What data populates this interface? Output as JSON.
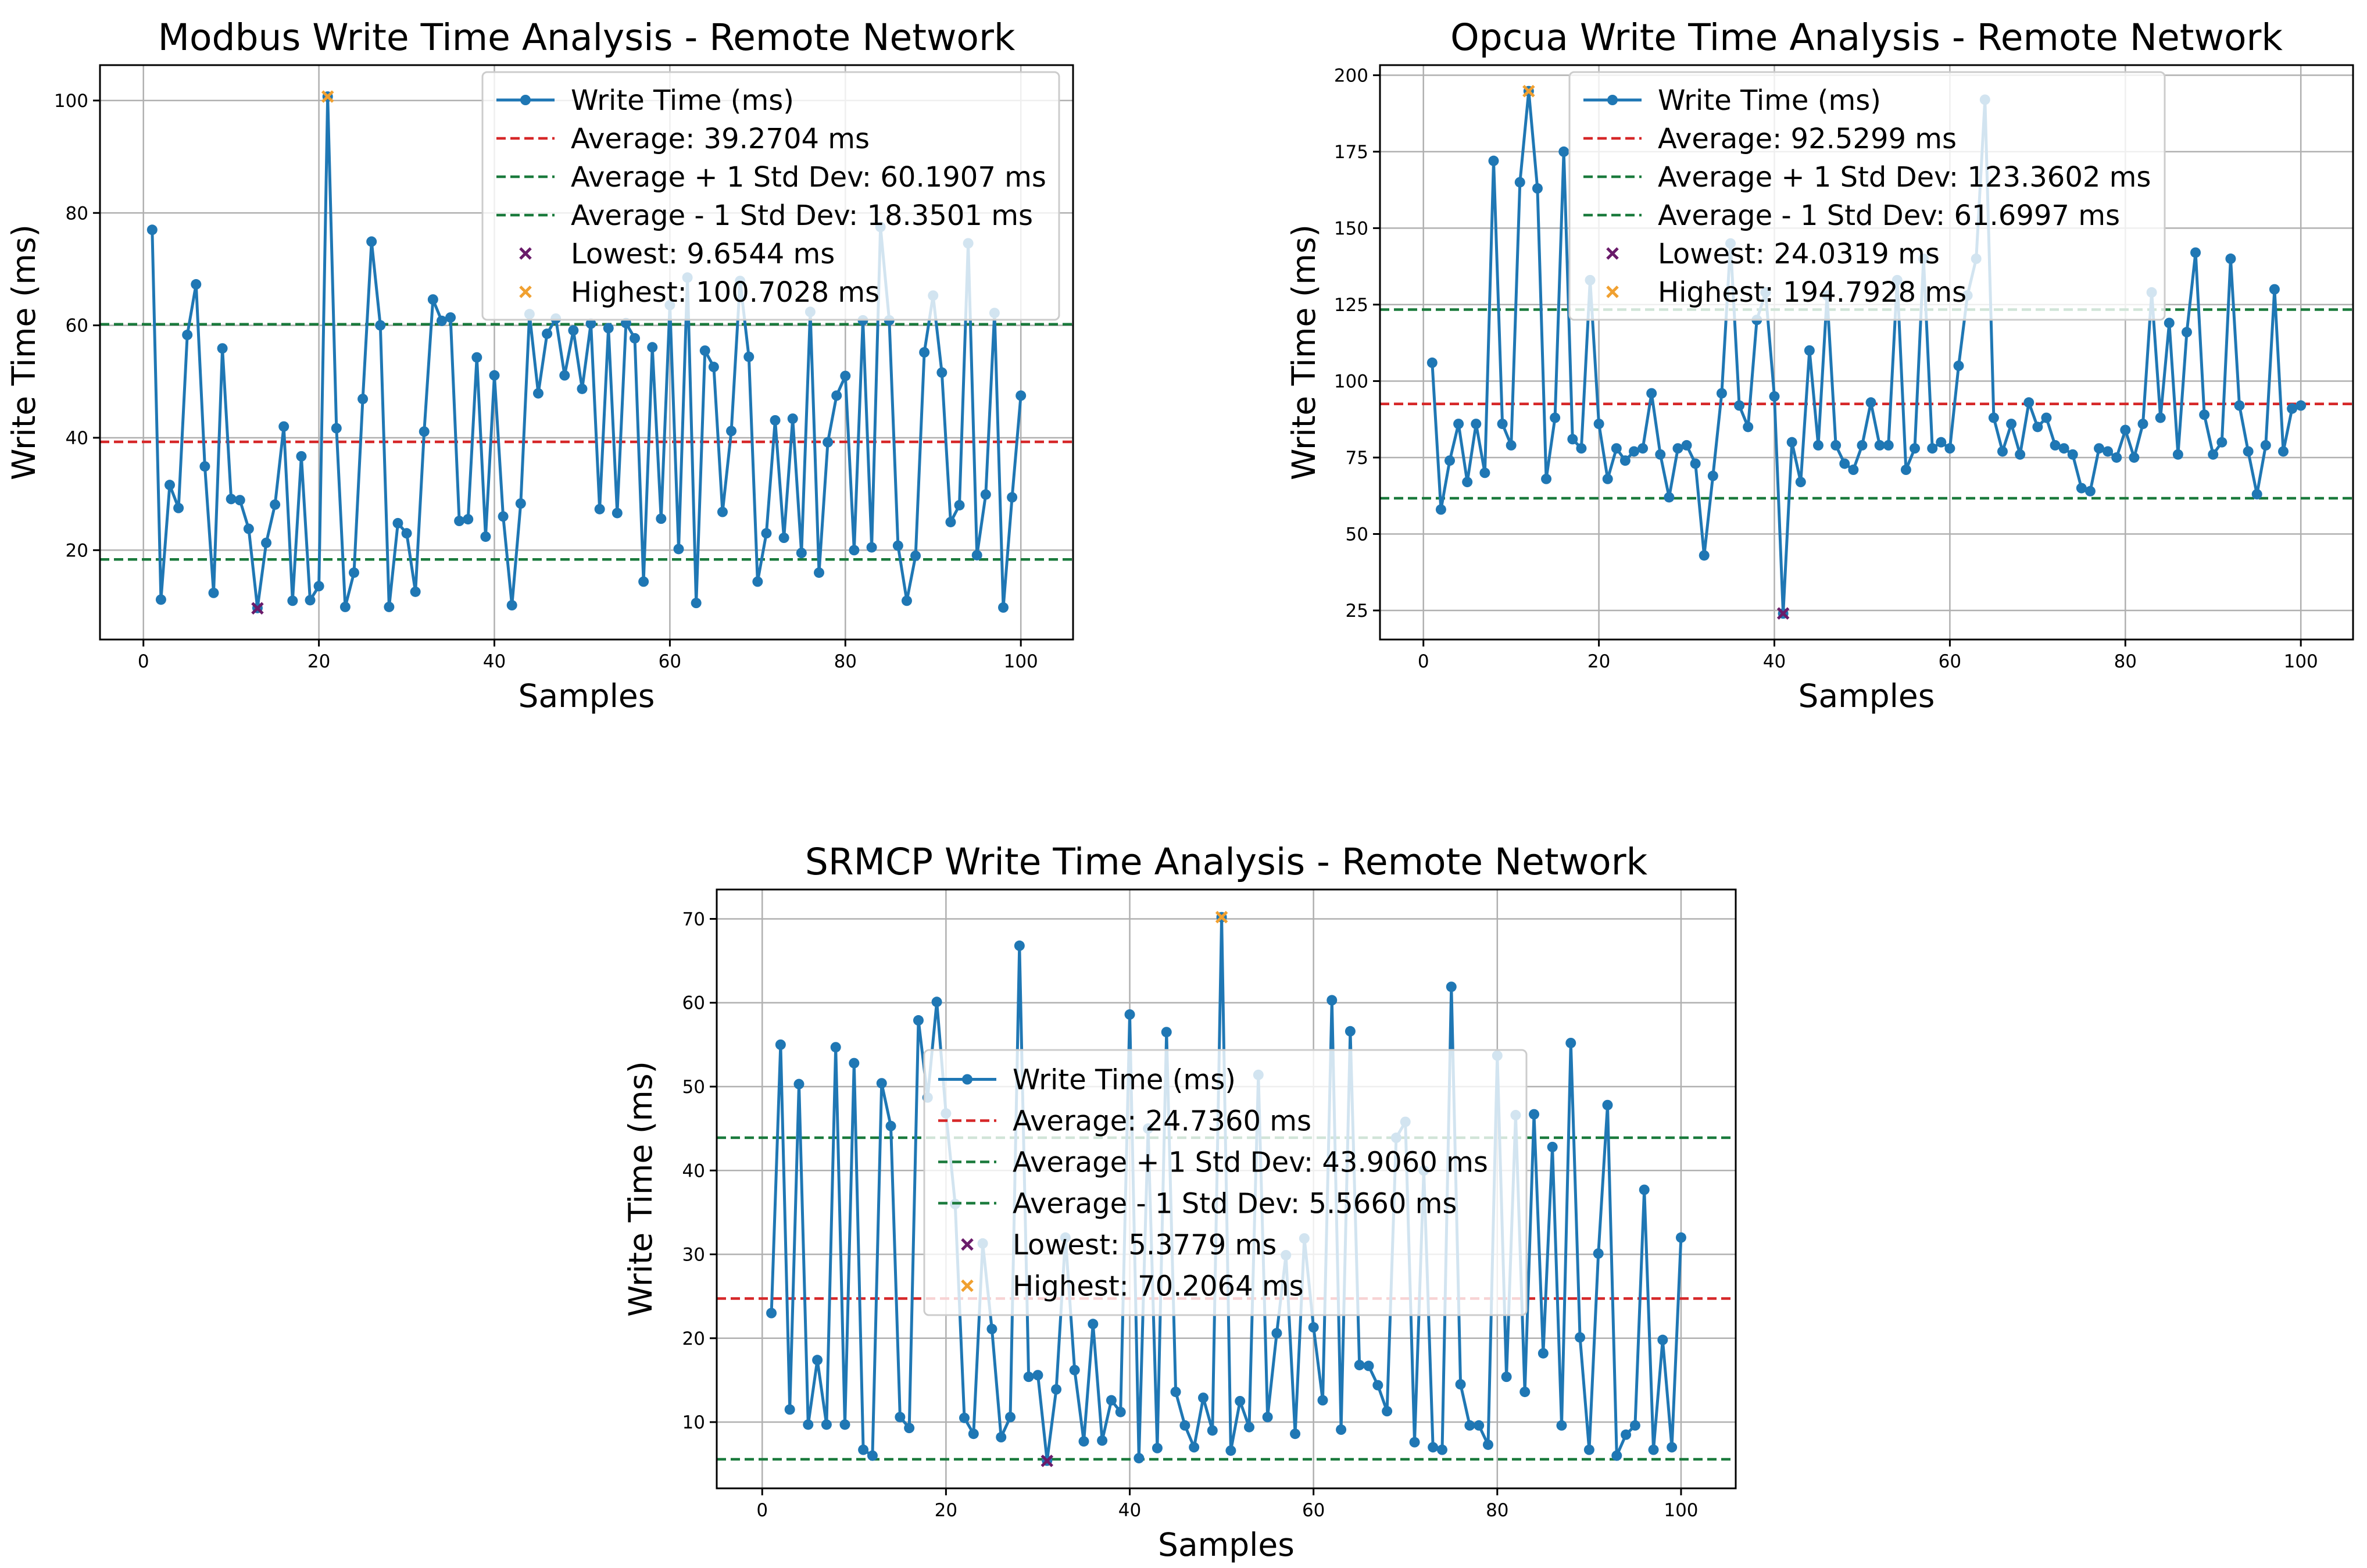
{
  "chart_data": [
    {
      "type": "line",
      "title": "Modbus Write Time Analysis - Remote Network",
      "xlabel": "Samples",
      "ylabel": "Write Time (ms)",
      "xlim": [
        -4.95,
        105.95
      ],
      "ylim": [
        4.1,
        106.3
      ],
      "xticks": [
        0,
        20,
        40,
        60,
        80,
        100
      ],
      "yticks": [
        20,
        40,
        60,
        80,
        100
      ],
      "grid": true,
      "legend_position": "upper-right",
      "series": [
        {
          "name": "Write Time (ms)",
          "color": "#1f77b4",
          "x": [
            1,
            2,
            3,
            4,
            5,
            6,
            7,
            8,
            9,
            10,
            11,
            12,
            13,
            14,
            15,
            16,
            17,
            18,
            19,
            20,
            21,
            22,
            23,
            24,
            25,
            26,
            27,
            28,
            29,
            30,
            31,
            32,
            33,
            34,
            35,
            36,
            37,
            38,
            39,
            40,
            41,
            42,
            43,
            44,
            45,
            46,
            47,
            48,
            49,
            50,
            51,
            52,
            53,
            54,
            55,
            56,
            57,
            58,
            59,
            60,
            61,
            62,
            63,
            64,
            65,
            66,
            67,
            68,
            69,
            70,
            71,
            72,
            73,
            74,
            75,
            76,
            77,
            78,
            79,
            80,
            81,
            82,
            83,
            84,
            85,
            86,
            87,
            88,
            89,
            90,
            91,
            92,
            93,
            94,
            95,
            96,
            97,
            98,
            99,
            100
          ],
          "values": [
            77.0,
            11.2,
            31.6,
            27.5,
            58.3,
            67.3,
            34.9,
            12.4,
            55.9,
            29.1,
            28.9,
            23.8,
            9.7,
            21.3,
            28.1,
            42.0,
            11.0,
            36.7,
            11.1,
            13.6,
            100.7,
            41.7,
            9.9,
            16.0,
            46.9,
            74.9,
            60.0,
            9.9,
            24.8,
            23.0,
            12.6,
            41.1,
            64.6,
            60.8,
            61.4,
            25.2,
            25.5,
            54.3,
            22.4,
            51.1,
            26.0,
            10.2,
            28.3,
            62.0,
            47.9,
            58.5,
            61.2,
            51.1,
            59.1,
            48.7,
            60.3,
            27.3,
            59.5,
            26.6,
            60.4,
            57.7,
            14.4,
            56.1,
            25.6,
            63.6,
            20.2,
            68.5,
            10.6,
            55.5,
            52.6,
            26.8,
            41.2,
            67.9,
            54.4,
            14.4,
            23.0,
            43.1,
            22.2,
            43.4,
            19.5,
            62.4,
            16.0,
            39.2,
            47.5,
            51.0,
            20.0,
            60.9,
            20.5,
            77.5,
            60.9,
            20.8,
            11.0,
            19.0,
            55.2,
            65.3,
            51.6,
            25.0,
            28.0,
            74.6,
            19.1,
            29.9,
            62.2,
            9.8,
            29.4,
            47.5
          ]
        }
      ],
      "reference_lines": [
        {
          "label": "Average: 39.2704 ms",
          "value": 39.2704,
          "color": "#d62728"
        },
        {
          "label": "Average + 1 Std Dev: 60.1907 ms",
          "value": 60.1907,
          "color": "#1a7a3c"
        },
        {
          "label": "Average - 1 Std Dev: 18.3501 ms",
          "value": 18.3501,
          "color": "#1a7a3c"
        }
      ],
      "markers": [
        {
          "label": "Lowest: 9.6544 ms",
          "x": 13,
          "value": 9.6544,
          "color": "#6a1b6a"
        },
        {
          "label": "Highest: 100.7028 ms",
          "x": 21,
          "value": 100.7028,
          "color": "#f0a030"
        }
      ]
    },
    {
      "type": "line",
      "title": "Opcua Write Time Analysis - Remote Network",
      "xlabel": "Samples",
      "ylabel": "Write Time (ms)",
      "xlim": [
        -4.95,
        105.95
      ],
      "ylim": [
        15.5,
        203.3
      ],
      "xticks": [
        0,
        20,
        40,
        60,
        80,
        100
      ],
      "yticks": [
        25,
        50,
        75,
        100,
        125,
        150,
        175,
        200
      ],
      "grid": true,
      "legend_position": "upper-right",
      "series": [
        {
          "name": "Write Time (ms)",
          "color": "#1f77b4",
          "x": [
            1,
            2,
            3,
            4,
            5,
            6,
            7,
            8,
            9,
            10,
            11,
            12,
            13,
            14,
            15,
            16,
            17,
            18,
            19,
            20,
            21,
            22,
            23,
            24,
            25,
            26,
            27,
            28,
            29,
            30,
            31,
            32,
            33,
            34,
            35,
            36,
            37,
            38,
            39,
            40,
            41,
            42,
            43,
            44,
            45,
            46,
            47,
            48,
            49,
            50,
            51,
            52,
            53,
            54,
            55,
            56,
            57,
            58,
            59,
            60,
            61,
            62,
            63,
            64,
            65,
            66,
            67,
            68,
            69,
            70,
            71,
            72,
            73,
            74,
            75,
            76,
            77,
            78,
            79,
            80,
            81,
            82,
            83,
            84,
            85,
            86,
            87,
            88,
            89,
            90,
            91,
            92,
            93,
            94,
            95,
            96,
            97,
            98,
            99,
            100
          ],
          "values": [
            106,
            58,
            74,
            86,
            67,
            86,
            70,
            172,
            86,
            79,
            165,
            194.8,
            163,
            68,
            88,
            175,
            81,
            78,
            133,
            86,
            68,
            78,
            74,
            77,
            78,
            96,
            76,
            62,
            78,
            79,
            73,
            43,
            69,
            96,
            145,
            92,
            85,
            120,
            129,
            95,
            24.0,
            80,
            67,
            110,
            79,
            128,
            79,
            73,
            71,
            79,
            93,
            79,
            79,
            133,
            71,
            78,
            140,
            78,
            80,
            78,
            105,
            128,
            140,
            192,
            88,
            77,
            86,
            76,
            93,
            85,
            88,
            79,
            78,
            76,
            65,
            64,
            78,
            77,
            75,
            84,
            75,
            86,
            129,
            88,
            119,
            76,
            116,
            142,
            89,
            76,
            80,
            140,
            92,
            77,
            63,
            79,
            130,
            77,
            91,
            92
          ]
        }
      ],
      "reference_lines": [
        {
          "label": "Average: 92.5299 ms",
          "value": 92.5299,
          "color": "#d62728"
        },
        {
          "label": "Average + 1 Std Dev: 123.3602 ms",
          "value": 123.3602,
          "color": "#1a7a3c"
        },
        {
          "label": "Average - 1 Std Dev: 61.6997 ms",
          "value": 61.6997,
          "color": "#1a7a3c"
        }
      ],
      "markers": [
        {
          "label": "Lowest: 24.0319 ms",
          "x": 41,
          "value": 24.0319,
          "color": "#6a1b6a"
        },
        {
          "label": "Highest: 194.7928 ms",
          "x": 12,
          "value": 194.7928,
          "color": "#f0a030"
        }
      ]
    },
    {
      "type": "line",
      "title": "SRMCP Write Time Analysis - Remote Network",
      "xlabel": "Samples",
      "ylabel": "Write Time (ms)",
      "xlim": [
        -4.95,
        105.95
      ],
      "ylim": [
        2.1,
        73.5
      ],
      "xticks": [
        0,
        20,
        40,
        60,
        80,
        100
      ],
      "yticks": [
        10,
        20,
        30,
        40,
        50,
        60,
        70
      ],
      "grid": true,
      "legend_position": "center",
      "series": [
        {
          "name": "Write Time (ms)",
          "color": "#1f77b4",
          "x": [
            1,
            2,
            3,
            4,
            5,
            6,
            7,
            8,
            9,
            10,
            11,
            12,
            13,
            14,
            15,
            16,
            17,
            18,
            19,
            20,
            21,
            22,
            23,
            24,
            25,
            26,
            27,
            28,
            29,
            30,
            31,
            32,
            33,
            34,
            35,
            36,
            37,
            38,
            39,
            40,
            41,
            42,
            43,
            44,
            45,
            46,
            47,
            48,
            49,
            50,
            51,
            52,
            53,
            54,
            55,
            56,
            57,
            58,
            59,
            60,
            61,
            62,
            63,
            64,
            65,
            66,
            67,
            68,
            69,
            70,
            71,
            72,
            73,
            74,
            75,
            76,
            77,
            78,
            79,
            80,
            81,
            82,
            83,
            84,
            85,
            86,
            87,
            88,
            89,
            90,
            91,
            92,
            93,
            94,
            95,
            96,
            97,
            98,
            99,
            100
          ],
          "values": [
            23.0,
            55.0,
            11.5,
            50.3,
            9.7,
            17.4,
            9.7,
            54.7,
            9.7,
            52.8,
            6.7,
            6.0,
            50.4,
            45.3,
            10.6,
            9.3,
            57.9,
            48.7,
            60.1,
            46.8,
            36.0,
            10.5,
            8.6,
            31.3,
            21.1,
            8.2,
            10.6,
            66.8,
            15.4,
            15.6,
            5.4,
            13.9,
            32.0,
            16.2,
            7.7,
            21.7,
            7.8,
            12.6,
            11.2,
            58.6,
            5.7,
            45.0,
            6.9,
            56.5,
            13.6,
            9.6,
            7.0,
            12.9,
            9.0,
            70.2,
            6.6,
            12.5,
            9.4,
            51.4,
            10.6,
            20.6,
            29.9,
            8.6,
            31.9,
            21.3,
            12.6,
            60.3,
            9.1,
            56.6,
            16.8,
            16.7,
            14.4,
            11.3,
            43.9,
            45.8,
            7.6,
            40.0,
            7.0,
            6.7,
            61.9,
            14.5,
            9.6,
            9.6,
            7.3,
            53.7,
            15.4,
            46.6,
            13.6,
            46.7,
            18.2,
            42.8,
            9.6,
            55.2,
            20.1,
            6.7,
            30.1,
            47.8,
            6.0,
            8.5,
            9.6,
            37.7,
            6.7,
            19.8,
            7.0,
            32.0
          ]
        }
      ],
      "reference_lines": [
        {
          "label": "Average: 24.7360 ms",
          "value": 24.736,
          "color": "#d62728"
        },
        {
          "label": "Average + 1 Std Dev: 43.9060 ms",
          "value": 43.906,
          "color": "#1a7a3c"
        },
        {
          "label": "Average - 1 Std Dev: 5.5660 ms",
          "value": 5.566,
          "color": "#1a7a3c"
        }
      ],
      "markers": [
        {
          "label": "Lowest: 5.3779 ms",
          "x": 31,
          "value": 5.3779,
          "color": "#6a1b6a"
        },
        {
          "label": "Highest: 70.2064 ms",
          "x": 50,
          "value": 70.2064,
          "color": "#f0a030"
        }
      ]
    }
  ]
}
